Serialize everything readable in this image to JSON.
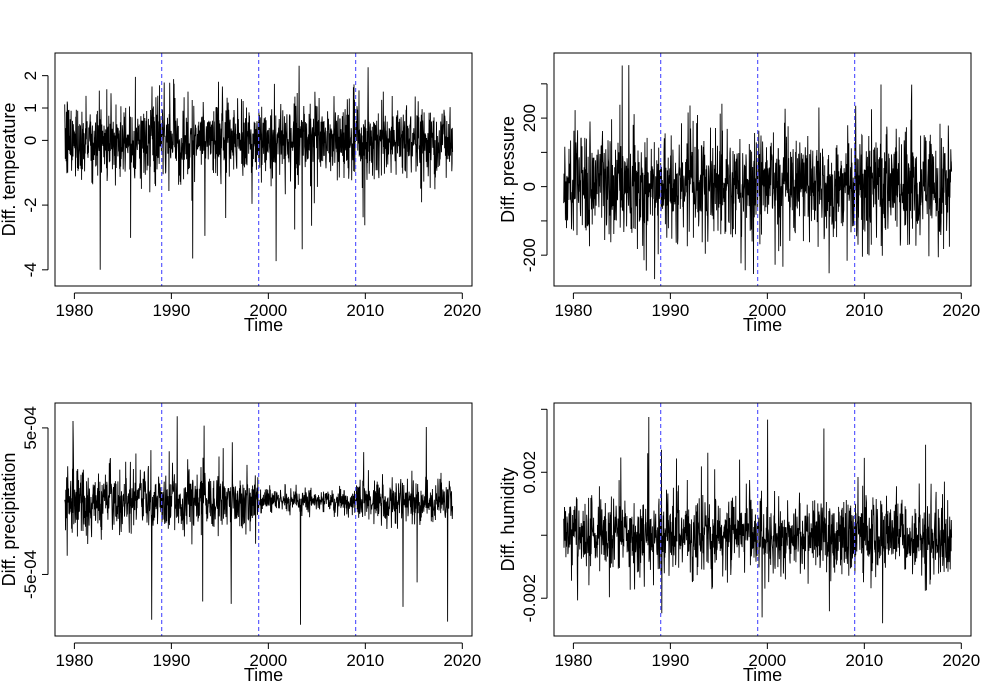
{
  "chart_data": [
    {
      "type": "line",
      "xlabel": "Time",
      "ylabel": "Diff. temperature",
      "xlim": [
        1978,
        2021
      ],
      "ylim": [
        -4.5,
        2.7
      ],
      "xticks": [
        1980,
        1990,
        2000,
        2010,
        2020
      ],
      "yticks": [
        -4,
        -2,
        0,
        1,
        2
      ],
      "ytick_labels": [
        "-4",
        "-2",
        "0",
        "1",
        "2"
      ],
      "vlines": [
        1989,
        1999,
        2009
      ],
      "series_range": [
        1979,
        2019
      ],
      "series_band": {
        "typical_min": -0.9,
        "typical_max": 0.9,
        "extreme_min": -4.2,
        "extreme_max": 2.4
      }
    },
    {
      "type": "line",
      "xlabel": "Time",
      "ylabel": "Diff. pressure",
      "xlim": [
        1978,
        2021
      ],
      "ylim": [
        -290,
        390
      ],
      "xticks": [
        1980,
        1990,
        2000,
        2010,
        2020
      ],
      "yticks": [
        -200,
        0,
        200
      ],
      "ytick_labels": [
        "-200",
        "0",
        "200"
      ],
      "minor_yticks": [
        -100,
        100,
        300
      ],
      "vlines": [
        1989,
        1999,
        2009
      ],
      "series_range": [
        1979,
        2019
      ],
      "series_band": {
        "typical_min": -120,
        "typical_max": 120,
        "extreme_min": -270,
        "extreme_max": 370
      }
    },
    {
      "type": "line",
      "xlabel": "Time",
      "ylabel": "Diff. precipitation",
      "xlim": [
        1978,
        2021
      ],
      "ylim": [
        -0.00092,
        0.00067
      ],
      "xticks": [
        1980,
        1990,
        2000,
        2010,
        2020
      ],
      "yticks": [
        -0.0005,
        0.0005
      ],
      "ytick_labels": [
        "-5e-04",
        "5e-04"
      ],
      "vlines": [
        1989,
        1999,
        2009
      ],
      "series_range": [
        1979,
        2019
      ],
      "series_band": {
        "typical_min": -0.00017,
        "typical_max": 0.00017,
        "extreme_min": -0.00088,
        "extreme_max": 0.00058
      },
      "note_variance_drop_year": 1999
    },
    {
      "type": "line",
      "xlabel": "Time",
      "ylabel": "Diff. humidity",
      "xlim": [
        1978,
        2021
      ],
      "ylim": [
        -0.0032,
        0.0042
      ],
      "xticks": [
        1980,
        1990,
        2000,
        2010,
        2020
      ],
      "yticks": [
        -0.002,
        0.002
      ],
      "ytick_labels": [
        "-0.002",
        "0.002"
      ],
      "minor_yticks": [
        0,
        0.004
      ],
      "vlines": [
        1989,
        1999,
        2009
      ],
      "series_range": [
        1979,
        2019
      ],
      "series_band": {
        "typical_min": -0.0009,
        "typical_max": 0.0009,
        "extreme_min": -0.0028,
        "extreme_max": 0.0038
      }
    }
  ],
  "colors": {
    "series": "#000000",
    "vline": "#5b5bff",
    "axis": "#000000"
  }
}
